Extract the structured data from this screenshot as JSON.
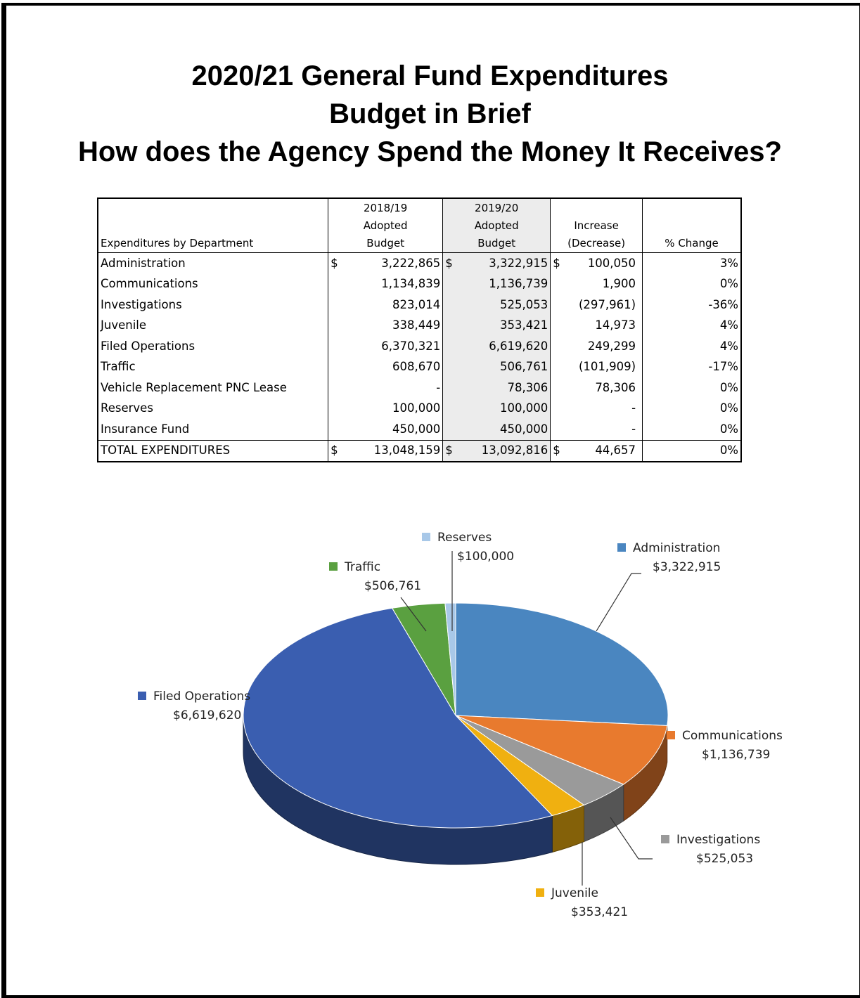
{
  "page": {
    "title_line1": "2020/21 General Fund Expenditures",
    "title_line2": "Budget in Brief",
    "title_line3": "How does the Agency Spend the Money It Receives?"
  },
  "table": {
    "headers": {
      "dept": "Expenditures by Department",
      "col1": [
        "2018/19",
        "Adopted",
        "Budget"
      ],
      "col2": [
        "2019/20",
        "Adopted",
        "Budget"
      ],
      "col3": [
        "Increase",
        "(Decrease)"
      ],
      "col4": "% Change"
    },
    "rows": [
      {
        "dept": "Administration",
        "cur": "$",
        "b1819": "3,222,865",
        "b1920": "3,322,915",
        "inc": "100,050",
        "pct": "3%"
      },
      {
        "dept": "Communications",
        "cur": "",
        "b1819": "1,134,839",
        "b1920": "1,136,739",
        "inc": "1,900",
        "pct": "0%"
      },
      {
        "dept": "Investigations",
        "cur": "",
        "b1819": "823,014",
        "b1920": "525,053",
        "inc": "(297,961)",
        "pct": "-36%"
      },
      {
        "dept": "Juvenile",
        "cur": "",
        "b1819": "338,449",
        "b1920": "353,421",
        "inc": "14,973",
        "pct": "4%"
      },
      {
        "dept": "Filed Operations",
        "cur": "",
        "b1819": "6,370,321",
        "b1920": "6,619,620",
        "inc": "249,299",
        "pct": "4%"
      },
      {
        "dept": "Traffic",
        "cur": "",
        "b1819": "608,670",
        "b1920": "506,761",
        "inc": "(101,909)",
        "pct": "-17%"
      },
      {
        "dept": "Vehicle Replacement PNC Lease",
        "cur": "",
        "b1819": "-",
        "b1920": "78,306",
        "inc": "78,306",
        "pct": "0%"
      },
      {
        "dept": "Reserves",
        "cur": "",
        "b1819": "100,000",
        "b1920": "100,000",
        "inc": "-",
        "pct": "0%"
      },
      {
        "dept": "Insurance Fund",
        "cur": "",
        "b1819": "450,000",
        "b1920": "450,000",
        "inc": "-",
        "pct": "0%"
      }
    ],
    "total": {
      "dept": "TOTAL EXPENDITURES",
      "cur": "$",
      "b1819": "13,048,159",
      "b1920": "13,092,816",
      "inc": "44,657",
      "pct": "0%"
    }
  },
  "chart_data": {
    "type": "pie",
    "slices": [
      {
        "name": "Administration",
        "label": "$3,322,915",
        "value": 3322915,
        "color": "#4a86c0"
      },
      {
        "name": "Communications",
        "label": "$1,136,739",
        "value": 1136739,
        "color": "#e87a2e"
      },
      {
        "name": "Investigations",
        "label": "$525,053",
        "value": 525053,
        "color": "#9a9a9a"
      },
      {
        "name": "Juvenile",
        "label": "$353,421",
        "value": 353421,
        "color": "#f0b010"
      },
      {
        "name": "Filed Operations",
        "label": "$6,619,620",
        "value": 6619620,
        "color": "#3a5eb0"
      },
      {
        "name": "Traffic",
        "label": "$506,761",
        "value": 506761,
        "color": "#5aa040"
      },
      {
        "name": "Reserves",
        "label": "$100,000",
        "value": 100000,
        "color": "#a8c8e8"
      }
    ]
  }
}
